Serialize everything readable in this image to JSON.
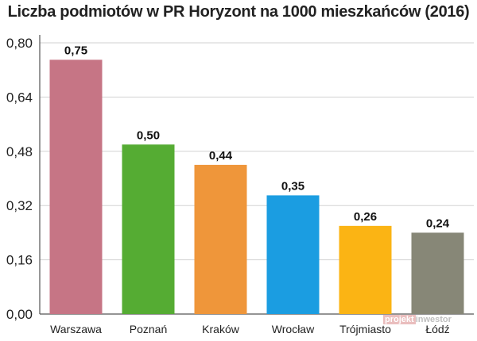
{
  "chart_data": {
    "type": "bar",
    "title": "Liczba podmiotów w PR Horyzont na 1000 mieszkańców (2016)",
    "categories": [
      "Warszawa",
      "Poznań",
      "Kraków",
      "Wrocław",
      "Trójmiasto",
      "Łódź"
    ],
    "values": [
      0.75,
      0.5,
      0.44,
      0.35,
      0.26,
      0.24
    ],
    "value_labels": [
      "0,75",
      "0,50",
      "0,44",
      "0,35",
      "0,26",
      "0,24"
    ],
    "colors": [
      "#c67585",
      "#55ac33",
      "#ef963a",
      "#1b9de1",
      "#fbb414",
      "#878777"
    ],
    "yticks": [
      0,
      0.16,
      0.32,
      0.48,
      0.64,
      0.8
    ],
    "ytick_labels": [
      "0,00",
      "0,16",
      "0,32",
      "0,48",
      "0,64",
      "0,80"
    ],
    "ylim": [
      0,
      0.8
    ],
    "xlabel": "",
    "ylabel": "",
    "grid": "horizontal",
    "legend": "none"
  },
  "watermark": {
    "text_part1": "projekt",
    "text_part2": "inwestor"
  }
}
